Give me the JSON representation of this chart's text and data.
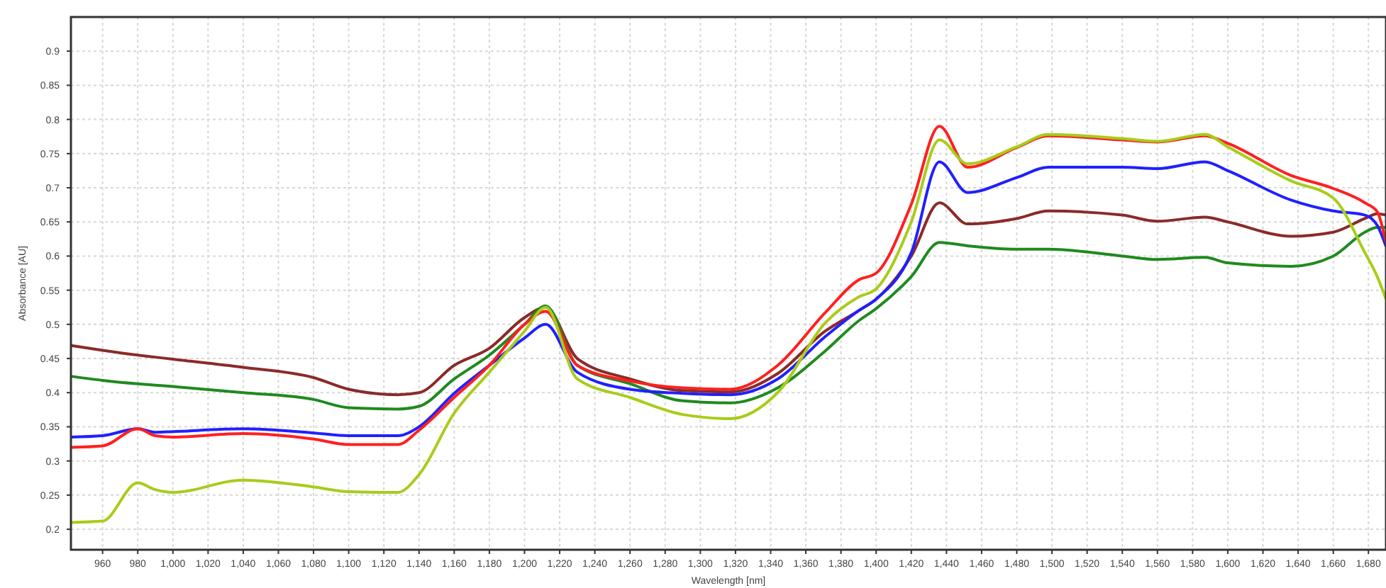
{
  "chart_data": {
    "type": "line",
    "xlabel": "Wavelength [nm]",
    "ylabel": "Absorbance [AU]",
    "grid": true,
    "line_style": "solid",
    "xlim": [
      942,
      1690
    ],
    "ylim": [
      0.17,
      0.95
    ],
    "yticks": [
      0.2,
      0.25,
      0.3,
      0.35,
      0.4,
      0.45,
      0.5,
      0.55,
      0.6,
      0.65,
      0.7,
      0.75,
      0.8,
      0.85,
      0.9
    ],
    "xticks": [
      960,
      980,
      {
        "value": 1000,
        "label": "1,000"
      },
      {
        "value": 1020,
        "label": "1,020"
      },
      {
        "value": 1040,
        "label": "1,040"
      },
      {
        "value": 1060,
        "label": "1,060"
      },
      {
        "value": 1080,
        "label": "1,080"
      },
      {
        "value": 1100,
        "label": "1,100"
      },
      {
        "value": 1120,
        "label": "1,120"
      },
      {
        "value": 1140,
        "label": "1,140"
      },
      {
        "value": 1160,
        "label": "1,160"
      },
      {
        "value": 1180,
        "label": "1,180"
      },
      {
        "value": 1200,
        "label": "1,200"
      },
      {
        "value": 1220,
        "label": "1,220"
      },
      {
        "value": 1240,
        "label": "1,240"
      },
      {
        "value": 1260,
        "label": "1,260"
      },
      {
        "value": 1280,
        "label": "1,280"
      },
      {
        "value": 1300,
        "label": "1,300"
      },
      {
        "value": 1320,
        "label": "1,320"
      },
      {
        "value": 1340,
        "label": "1,340"
      },
      {
        "value": 1360,
        "label": "1,360"
      },
      {
        "value": 1380,
        "label": "1,380"
      },
      {
        "value": 1400,
        "label": "1,400"
      },
      {
        "value": 1420,
        "label": "1,420"
      },
      {
        "value": 1440,
        "label": "1,440"
      },
      {
        "value": 1460,
        "label": "1,460"
      },
      {
        "value": 1480,
        "label": "1,480"
      },
      {
        "value": 1500,
        "label": "1,500"
      },
      {
        "value": 1520,
        "label": "1,520"
      },
      {
        "value": 1540,
        "label": "1,540"
      },
      {
        "value": 1560,
        "label": "1,560"
      },
      {
        "value": 1580,
        "label": "1,580"
      },
      {
        "value": 1600,
        "label": "1,600"
      },
      {
        "value": 1620,
        "label": "1,620"
      },
      {
        "value": 1640,
        "label": "1,640"
      },
      {
        "value": 1660,
        "label": "1,660"
      },
      {
        "value": 1680,
        "label": "1,680"
      }
    ],
    "x": [
      942,
      960,
      980,
      990,
      1000,
      1040,
      1080,
      1100,
      1128,
      1140,
      1160,
      1180,
      1200,
      1212,
      1230,
      1260,
      1290,
      1317,
      1344,
      1371,
      1390,
      1400,
      1420,
      1436,
      1452,
      1480,
      1498,
      1540,
      1560,
      1587,
      1600,
      1636,
      1660,
      1678,
      1685,
      1690
    ],
    "series": [
      {
        "color": "#8b2a2a",
        "values": [
          0.469,
          0.462,
          0.455,
          0.452,
          0.449,
          0.437,
          0.422,
          0.405,
          0.397,
          0.4,
          0.44,
          0.465,
          0.51,
          0.525,
          0.45,
          0.42,
          0.403,
          0.401,
          0.428,
          0.49,
          0.52,
          0.537,
          0.6,
          0.678,
          0.647,
          0.655,
          0.666,
          0.66,
          0.651,
          0.657,
          0.65,
          0.629,
          0.635,
          0.655,
          0.662,
          0.66
        ]
      },
      {
        "color": "#1f8a1f",
        "values": [
          0.424,
          0.418,
          0.413,
          0.411,
          0.409,
          0.4,
          0.39,
          0.378,
          0.376,
          0.38,
          0.42,
          0.455,
          0.5,
          0.527,
          0.44,
          0.413,
          0.388,
          0.385,
          0.407,
          0.461,
          0.505,
          0.523,
          0.57,
          0.62,
          0.615,
          0.61,
          0.61,
          0.6,
          0.595,
          0.598,
          0.59,
          0.585,
          0.6,
          0.635,
          0.642,
          0.642
        ]
      },
      {
        "color": "#2020ff",
        "values": [
          0.335,
          0.337,
          0.347,
          0.342,
          0.343,
          0.347,
          0.341,
          0.337,
          0.337,
          0.35,
          0.399,
          0.44,
          0.48,
          0.5,
          0.43,
          0.405,
          0.399,
          0.397,
          0.42,
          0.482,
          0.52,
          0.537,
          0.605,
          0.738,
          0.693,
          0.715,
          0.73,
          0.73,
          0.728,
          0.738,
          0.725,
          0.682,
          0.666,
          0.66,
          0.645,
          0.614
        ]
      },
      {
        "color": "#ff2020",
        "values": [
          0.32,
          0.322,
          0.347,
          0.337,
          0.335,
          0.34,
          0.332,
          0.324,
          0.324,
          0.345,
          0.393,
          0.44,
          0.5,
          0.519,
          0.44,
          0.417,
          0.407,
          0.405,
          0.44,
          0.517,
          0.565,
          0.575,
          0.676,
          0.79,
          0.73,
          0.759,
          0.776,
          0.77,
          0.767,
          0.776,
          0.765,
          0.718,
          0.699,
          0.678,
          0.665,
          0.62
        ]
      },
      {
        "color": "#a8cc1a",
        "values": [
          0.21,
          0.212,
          0.268,
          0.258,
          0.254,
          0.272,
          0.262,
          0.255,
          0.254,
          0.28,
          0.37,
          0.43,
          0.49,
          0.525,
          0.42,
          0.393,
          0.368,
          0.362,
          0.4,
          0.502,
          0.54,
          0.552,
          0.65,
          0.77,
          0.735,
          0.76,
          0.778,
          0.772,
          0.768,
          0.778,
          0.76,
          0.71,
          0.685,
          0.605,
          0.57,
          0.537
        ]
      }
    ]
  }
}
